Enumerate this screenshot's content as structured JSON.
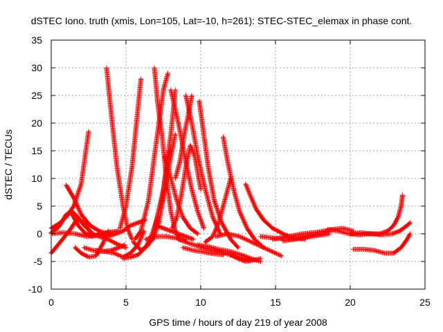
{
  "chart_data": {
    "type": "scatter",
    "title": "dSTEC Iono. truth (xmis, Lon=105, Lat=-10, h=261): STEC-STEC_elemax in phase cont.",
    "xlabel": "GPS time / hours of day 219 of year 2008",
    "ylabel": "dSTEC  / TECUs",
    "xlim": [
      0,
      25
    ],
    "ylim": [
      -10,
      35
    ],
    "xticks": [
      0,
      5,
      10,
      15,
      20,
      25
    ],
    "yticks": [
      -10,
      -5,
      0,
      5,
      10,
      15,
      20,
      25,
      30,
      35
    ],
    "grid": true,
    "marker": "plus",
    "color": "#ff0000",
    "series": [
      {
        "x": [
          0.0,
          0.5,
          1.0,
          1.5,
          2.0,
          2.5
        ],
        "y": [
          1.0,
          1.8,
          3.0,
          5.0,
          9.0,
          18.5
        ]
      },
      {
        "x": [
          0.0,
          0.6,
          1.2,
          1.7,
          2.3,
          2.7
        ],
        "y": [
          -3.5,
          -1.5,
          0.5,
          2.5,
          2.0,
          -0.5
        ]
      },
      {
        "x": [
          0.0,
          0.5,
          1.0,
          1.4,
          1.8,
          2.2,
          2.8
        ],
        "y": [
          0.2,
          1.2,
          3.5,
          4.0,
          3.0,
          1.5,
          0.0
        ]
      },
      {
        "x": [
          1.0,
          1.5,
          2.0,
          2.6,
          3.2,
          3.7
        ],
        "y": [
          8.8,
          6.5,
          3.5,
          1.5,
          0.5,
          0.0
        ]
      },
      {
        "x": [
          1.3,
          1.8,
          2.3,
          2.7,
          3.3,
          3.9,
          4.5
        ],
        "y": [
          4.0,
          1.5,
          0.0,
          -0.5,
          0.0,
          0.3,
          0.5
        ]
      },
      {
        "x": [
          1.6,
          2.0,
          2.5,
          3.0,
          3.5,
          3.8
        ],
        "y": [
          -2.5,
          -3.5,
          -4.2,
          -4.0,
          -1.5,
          0.5
        ]
      },
      {
        "x": [
          0.0,
          0.8,
          1.6,
          2.4,
          3.2,
          4.0
        ],
        "y": [
          0.0,
          0.2,
          0.0,
          -0.5,
          -0.2,
          0.0
        ]
      },
      {
        "x": [
          3.7,
          4.0,
          4.4,
          4.8,
          5.1,
          5.4
        ],
        "y": [
          30.0,
          22.0,
          12.0,
          5.0,
          1.0,
          -1.0
        ]
      },
      {
        "x": [
          2.2,
          2.8,
          3.4,
          4.0,
          4.5,
          4.9
        ],
        "y": [
          -2.5,
          -3.0,
          -3.2,
          -3.0,
          -2.5,
          -2.0
        ]
      },
      {
        "x": [
          3.0,
          3.6,
          4.2,
          4.8,
          5.3,
          5.8,
          6.2
        ],
        "y": [
          -3.0,
          -3.2,
          -3.5,
          -4.2,
          -3.5,
          -2.0,
          0.5
        ]
      },
      {
        "x": [
          2.6,
          3.2,
          3.8,
          4.5,
          5.0
        ],
        "y": [
          0.0,
          -0.5,
          -1.0,
          -2.0,
          -2.5
        ]
      },
      {
        "x": [
          3.8,
          4.3,
          4.8,
          5.3,
          5.8,
          6.3
        ],
        "y": [
          -0.5,
          0.0,
          0.5,
          1.5,
          2.0,
          2.5
        ]
      },
      {
        "x": [
          4.6,
          5.0,
          5.4,
          5.7,
          6.0
        ],
        "y": [
          1.0,
          5.0,
          12.0,
          20.0,
          28.0
        ]
      },
      {
        "x": [
          4.8,
          5.3,
          5.8,
          6.3,
          6.8,
          7.4,
          7.9
        ],
        "y": [
          -4.5,
          -4.2,
          -3.8,
          -2.5,
          0.0,
          6.0,
          15.0
        ]
      },
      {
        "x": [
          5.5,
          6.0,
          6.5,
          7.0,
          7.5,
          8.0,
          8.3
        ],
        "y": [
          -1.5,
          -3.0,
          -2.0,
          2.0,
          8.0,
          18.0,
          26.0
        ]
      },
      {
        "x": [
          5.6,
          6.0,
          6.5,
          6.9,
          7.2,
          7.5,
          7.8
        ],
        "y": [
          -1.0,
          0.5,
          6.0,
          14.0,
          20.0,
          26.0,
          29.0
        ]
      },
      {
        "x": [
          6.4,
          6.8,
          7.2,
          7.6,
          8.0,
          8.3
        ],
        "y": [
          -2.0,
          -1.0,
          2.0,
          8.0,
          14.0,
          18.0
        ]
      },
      {
        "x": [
          6.9,
          7.1,
          7.4,
          7.7,
          8.0,
          8.3,
          8.6
        ],
        "y": [
          30.0,
          24.0,
          18.0,
          10.0,
          4.0,
          0.5,
          -1.0
        ]
      },
      {
        "x": [
          6.3,
          7.0,
          7.7,
          8.4,
          9.0
        ],
        "y": [
          -1.0,
          -0.5,
          -0.5,
          -0.8,
          -1.0
        ]
      },
      {
        "x": [
          7.0,
          7.5,
          8.0,
          8.5,
          9.0,
          9.5
        ],
        "y": [
          1.5,
          1.0,
          0.5,
          0.0,
          -0.5,
          -1.0
        ]
      },
      {
        "x": [
          7.6,
          8.0,
          8.4,
          8.8,
          9.3,
          9.8
        ],
        "y": [
          14.0,
          10.0,
          6.0,
          3.0,
          1.0,
          0.0
        ]
      },
      {
        "x": [
          8.0,
          8.5,
          9.0,
          9.4,
          9.8,
          10.2
        ],
        "y": [
          26.0,
          20.0,
          13.0,
          8.0,
          4.0,
          1.0
        ]
      },
      {
        "x": [
          8.1,
          8.4,
          8.7,
          9.0,
          9.3,
          9.6,
          10.0
        ],
        "y": [
          1.0,
          3.0,
          7.0,
          12.0,
          16.0,
          14.0,
          8.0
        ]
      },
      {
        "x": [
          8.3,
          8.6,
          8.9,
          9.2,
          9.4
        ],
        "y": [
          10.0,
          13.0,
          18.0,
          22.0,
          25.0
        ]
      },
      {
        "x": [
          9.0,
          9.4,
          9.8,
          10.3,
          10.8,
          11.3
        ],
        "y": [
          25.0,
          20.0,
          14.0,
          8.0,
          3.0,
          0.0
        ]
      },
      {
        "x": [
          9.9,
          10.2,
          10.5,
          10.9,
          11.4,
          12.0,
          12.5
        ],
        "y": [
          24.0,
          18.0,
          12.0,
          6.0,
          2.0,
          -1.0,
          -2.5
        ]
      },
      {
        "x": [
          10.3,
          10.8,
          11.2,
          11.6,
          12.0
        ],
        "y": [
          -1.5,
          -0.5,
          2.0,
          6.0,
          10.0
        ]
      },
      {
        "x": [
          11.5,
          11.8,
          12.2,
          12.6,
          13.1,
          13.6,
          14.2
        ],
        "y": [
          17.5,
          13.0,
          8.0,
          4.0,
          1.0,
          -1.0,
          -2.5
        ]
      },
      {
        "x": [
          8.5,
          9.3,
          10.1,
          10.9,
          11.7,
          12.5,
          13.3
        ],
        "y": [
          -1.0,
          -1.8,
          -2.5,
          -3.0,
          -3.6,
          -4.2,
          -4.8
        ]
      },
      {
        "x": [
          9.8,
          10.5,
          11.2,
          12.0,
          12.7,
          13.4,
          14.0
        ],
        "y": [
          -2.0,
          -2.3,
          -2.8,
          -3.2,
          -3.8,
          -4.5,
          -5.0
        ]
      },
      {
        "x": [
          8.8,
          9.5,
          10.2,
          10.8,
          11.5
        ],
        "y": [
          -2.5,
          -3.0,
          -3.3,
          -3.6,
          -3.8
        ]
      },
      {
        "x": [
          11.0,
          11.8,
          12.6,
          13.4,
          14.2,
          15.0,
          15.4
        ],
        "y": [
          -0.5,
          0.0,
          -0.5,
          -1.5,
          -2.5,
          -3.5,
          -4.0
        ]
      },
      {
        "x": [
          12.0,
          12.5,
          13.0,
          13.5,
          14.0
        ],
        "y": [
          -3.8,
          -4.5,
          -5.0,
          -4.8,
          -4.5
        ]
      },
      {
        "x": [
          13.0,
          13.3,
          13.7,
          14.2,
          14.8,
          15.5,
          16.2,
          17.0
        ],
        "y": [
          9.0,
          7.0,
          4.5,
          2.5,
          1.0,
          0.0,
          -0.8,
          -1.0
        ]
      },
      {
        "x": [
          14.0,
          15.0,
          16.0,
          17.0,
          18.0,
          18.6
        ],
        "y": [
          -0.5,
          -0.8,
          -1.0,
          -0.5,
          0.0,
          0.3
        ]
      },
      {
        "x": [
          14.8,
          15.8,
          16.8,
          17.8,
          18.8,
          19.5,
          20.2
        ],
        "y": [
          -1.0,
          -0.5,
          0.0,
          0.3,
          0.8,
          1.0,
          0.5
        ]
      },
      {
        "x": [
          15.5,
          16.3,
          17.1,
          17.9,
          18.6
        ],
        "y": [
          -1.3,
          -1.0,
          -0.6,
          -0.3,
          0.0
        ]
      },
      {
        "x": [
          18.5,
          19.2,
          19.9,
          20.6,
          21.3,
          22.0
        ],
        "y": [
          0.8,
          0.5,
          0.0,
          -0.2,
          0.0,
          0.0
        ]
      },
      {
        "x": [
          20.0,
          20.7,
          21.4,
          22.1,
          22.8,
          23.3,
          23.8,
          24.0
        ],
        "y": [
          0.0,
          0.2,
          0.0,
          -0.2,
          0.0,
          0.5,
          1.5,
          2.0
        ]
      },
      {
        "x": [
          20.2,
          20.9,
          21.6,
          22.3,
          22.9,
          23.4,
          23.8,
          24.0
        ],
        "y": [
          -2.8,
          -2.8,
          -3.0,
          -3.5,
          -3.5,
          -2.5,
          -1.0,
          0.0
        ]
      },
      {
        "x": [
          22.0,
          22.5,
          22.9,
          23.2,
          23.4,
          23.5
        ],
        "y": [
          0.0,
          0.5,
          1.5,
          3.0,
          5.0,
          7.0
        ]
      }
    ]
  }
}
